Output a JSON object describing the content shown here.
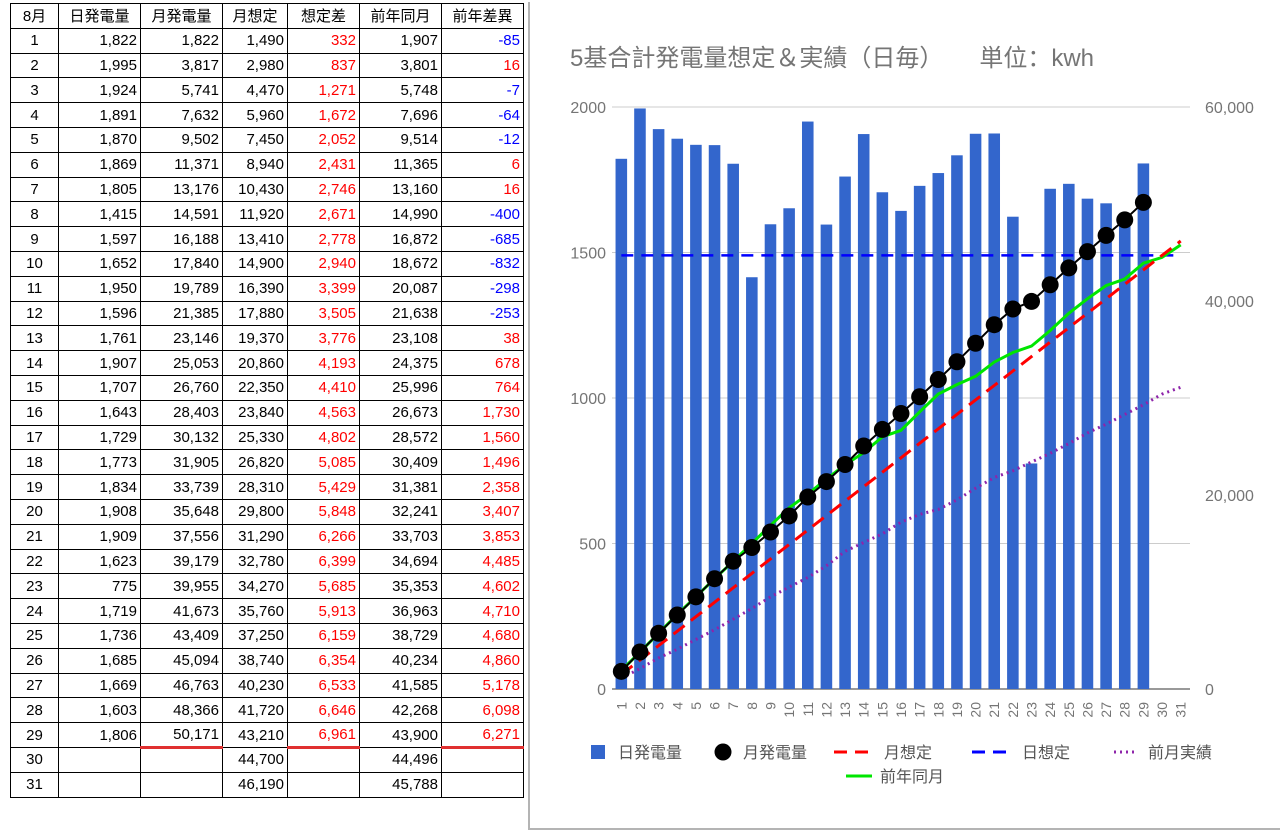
{
  "table": {
    "headers": [
      "8月",
      "日発電量",
      "月発電量",
      "月想定",
      "想定差",
      "前年同月",
      "前年差異"
    ],
    "rows": [
      [
        "1",
        "1,822",
        "1,822",
        "1,490",
        "332",
        "1,907",
        "-85"
      ],
      [
        "2",
        "1,995",
        "3,817",
        "2,980",
        "837",
        "3,801",
        "16"
      ],
      [
        "3",
        "1,924",
        "5,741",
        "4,470",
        "1,271",
        "5,748",
        "-7"
      ],
      [
        "4",
        "1,891",
        "7,632",
        "5,960",
        "1,672",
        "7,696",
        "-64"
      ],
      [
        "5",
        "1,870",
        "9,502",
        "7,450",
        "2,052",
        "9,514",
        "-12"
      ],
      [
        "6",
        "1,869",
        "11,371",
        "8,940",
        "2,431",
        "11,365",
        "6"
      ],
      [
        "7",
        "1,805",
        "13,176",
        "10,430",
        "2,746",
        "13,160",
        "16"
      ],
      [
        "8",
        "1,415",
        "14,591",
        "11,920",
        "2,671",
        "14,990",
        "-400"
      ],
      [
        "9",
        "1,597",
        "16,188",
        "13,410",
        "2,778",
        "16,872",
        "-685"
      ],
      [
        "10",
        "1,652",
        "17,840",
        "14,900",
        "2,940",
        "18,672",
        "-832"
      ],
      [
        "11",
        "1,950",
        "19,789",
        "16,390",
        "3,399",
        "20,087",
        "-298"
      ],
      [
        "12",
        "1,596",
        "21,385",
        "17,880",
        "3,505",
        "21,638",
        "-253"
      ],
      [
        "13",
        "1,761",
        "23,146",
        "19,370",
        "3,776",
        "23,108",
        "38"
      ],
      [
        "14",
        "1,907",
        "25,053",
        "20,860",
        "4,193",
        "24,375",
        "678"
      ],
      [
        "15",
        "1,707",
        "26,760",
        "22,350",
        "4,410",
        "25,996",
        "764"
      ],
      [
        "16",
        "1,643",
        "28,403",
        "23,840",
        "4,563",
        "26,673",
        "1,730"
      ],
      [
        "17",
        "1,729",
        "30,132",
        "25,330",
        "4,802",
        "28,572",
        "1,560"
      ],
      [
        "18",
        "1,773",
        "31,905",
        "26,820",
        "5,085",
        "30,409",
        "1,496"
      ],
      [
        "19",
        "1,834",
        "33,739",
        "28,310",
        "5,429",
        "31,381",
        "2,358"
      ],
      [
        "20",
        "1,908",
        "35,648",
        "29,800",
        "5,848",
        "32,241",
        "3,407"
      ],
      [
        "21",
        "1,909",
        "37,556",
        "31,290",
        "6,266",
        "33,703",
        "3,853"
      ],
      [
        "22",
        "1,623",
        "39,179",
        "32,780",
        "6,399",
        "34,694",
        "4,485"
      ],
      [
        "23",
        "775",
        "39,955",
        "34,270",
        "5,685",
        "35,353",
        "4,602"
      ],
      [
        "24",
        "1,719",
        "41,673",
        "35,760",
        "5,913",
        "36,963",
        "4,710"
      ],
      [
        "25",
        "1,736",
        "43,409",
        "37,250",
        "6,159",
        "38,729",
        "4,680"
      ],
      [
        "26",
        "1,685",
        "45,094",
        "38,740",
        "6,354",
        "40,234",
        "4,860"
      ],
      [
        "27",
        "1,669",
        "46,763",
        "40,230",
        "6,533",
        "41,585",
        "5,178"
      ],
      [
        "28",
        "1,603",
        "48,366",
        "41,720",
        "6,646",
        "42,268",
        "6,098"
      ],
      [
        "29",
        "1,806",
        "50,171",
        "43,210",
        "6,961",
        "43,900",
        "6,271"
      ],
      [
        "30",
        "",
        "",
        "44,700",
        "",
        "44,496",
        ""
      ],
      [
        "31",
        "",
        "",
        "46,190",
        "",
        "45,788",
        ""
      ]
    ],
    "colors": {
      "positive_diff": "#ff0000",
      "negative_diff": "#0000ff",
      "total_underline": "#e03030"
    }
  },
  "chart_data": {
    "type": "bar",
    "title": "5基合計発電量想定＆実績（日毎）　　単位：kwh",
    "x": [
      1,
      2,
      3,
      4,
      5,
      6,
      7,
      8,
      9,
      10,
      11,
      12,
      13,
      14,
      15,
      16,
      17,
      18,
      19,
      20,
      21,
      22,
      23,
      24,
      25,
      26,
      27,
      28,
      29,
      30,
      31
    ],
    "x_tick_labels": [
      "1",
      "2",
      "3",
      "4",
      "5",
      "6",
      "7",
      "8",
      "9",
      "10",
      "11",
      "12",
      "13",
      "14",
      "15",
      "16",
      "17",
      "18",
      "19",
      "20",
      "21",
      "22",
      "23",
      "24",
      "25",
      "26",
      "27",
      "28",
      "29",
      "30",
      "31"
    ],
    "y_left": {
      "ylim": [
        0,
        2000
      ],
      "ticks": [
        "0",
        "500",
        "1000",
        "1500",
        "2000"
      ]
    },
    "y_right": {
      "ylim": [
        0,
        60000
      ],
      "ticks": [
        "0",
        "20,000",
        "40,000",
        "60,000"
      ]
    },
    "grid": true,
    "legend_position": "bottom",
    "series": [
      {
        "name": "日発電量",
        "type": "bar",
        "axis": "left",
        "color": "#3366cc",
        "values": [
          1822,
          1995,
          1924,
          1891,
          1870,
          1869,
          1805,
          1415,
          1597,
          1652,
          1950,
          1596,
          1761,
          1907,
          1707,
          1643,
          1729,
          1773,
          1834,
          1908,
          1909,
          1623,
          775,
          1719,
          1736,
          1685,
          1669,
          1603,
          1806,
          null,
          null
        ]
      },
      {
        "name": "月発電量",
        "type": "line-markers",
        "axis": "right",
        "color": "#000000",
        "values": [
          1822,
          3817,
          5741,
          7632,
          9502,
          11371,
          13176,
          14591,
          16188,
          17840,
          19789,
          21385,
          23146,
          25053,
          26760,
          28403,
          30132,
          31905,
          33739,
          35648,
          37556,
          39179,
          39955,
          41673,
          43409,
          45094,
          46763,
          48366,
          50171,
          null,
          null
        ]
      },
      {
        "name": "月想定",
        "type": "dashed-line",
        "axis": "right",
        "color": "#ff0000",
        "values": [
          1490,
          2980,
          4470,
          5960,
          7450,
          8940,
          10430,
          11920,
          13410,
          14900,
          16390,
          17880,
          19370,
          20860,
          22350,
          23840,
          25330,
          26820,
          28310,
          29800,
          31290,
          32780,
          34270,
          35760,
          37250,
          38740,
          40230,
          41720,
          43210,
          44700,
          46190
        ]
      },
      {
        "name": "日想定",
        "type": "dashed-line",
        "axis": "left",
        "color": "#0000ff",
        "values": [
          1490,
          1490,
          1490,
          1490,
          1490,
          1490,
          1490,
          1490,
          1490,
          1490,
          1490,
          1490,
          1490,
          1490,
          1490,
          1490,
          1490,
          1490,
          1490,
          1490,
          1490,
          1490,
          1490,
          1490,
          1490,
          1490,
          1490,
          1490,
          1490,
          1490,
          1490
        ]
      },
      {
        "name": "前月実績",
        "type": "dotted-line",
        "axis": "right",
        "color": "#8e24aa",
        "values": [
          1100,
          2100,
          3200,
          4100,
          5100,
          6100,
          7200,
          8300,
          9500,
          10500,
          11500,
          12700,
          14200,
          15100,
          16000,
          17200,
          18000,
          18500,
          19500,
          20700,
          21800,
          22500,
          23400,
          24300,
          25300,
          26400,
          27300,
          28300,
          29300,
          30400,
          31100
        ]
      },
      {
        "name": "前年同月",
        "type": "line",
        "axis": "right",
        "color": "#00e600",
        "values": [
          1907,
          3801,
          5748,
          7696,
          9514,
          11365,
          13160,
          14990,
          16872,
          18672,
          20087,
          21638,
          23108,
          24375,
          25996,
          26673,
          28572,
          30409,
          31381,
          32241,
          33703,
          34694,
          35353,
          36963,
          38729,
          40234,
          41585,
          42268,
          43900,
          44496,
          45788
        ]
      }
    ]
  }
}
